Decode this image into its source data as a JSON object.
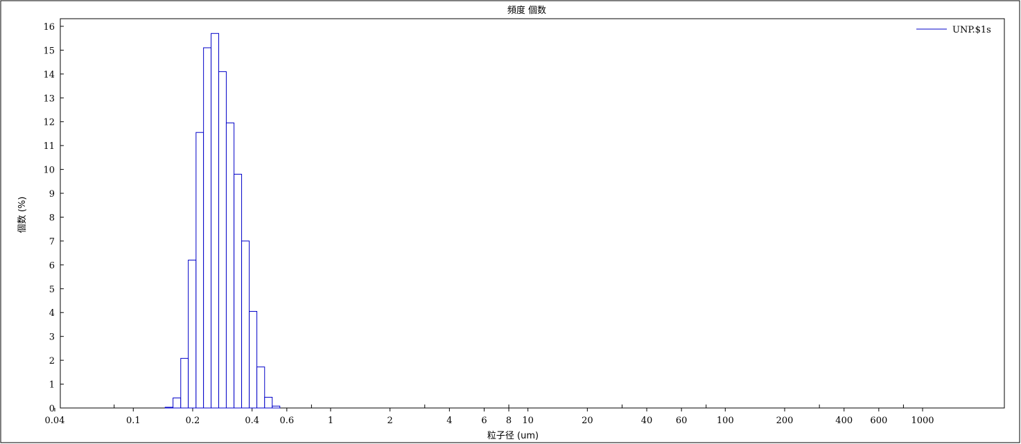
{
  "chart_data": {
    "type": "bar",
    "title": "頻度 個数",
    "xlabel": "粒子径 (um)",
    "ylabel": "個数 (%)",
    "x_scale": "log",
    "xlim": [
      0.04,
      3000
    ],
    "ylim": [
      0,
      16.5
    ],
    "x_tick_labels": [
      "0.04",
      "0.1",
      "0.2",
      "0.4",
      "0.6",
      "1",
      "2",
      "4",
      "6",
      "8",
      "10",
      "20",
      "40",
      "60",
      "100",
      "200",
      "400",
      "600",
      "1000"
    ],
    "x_tick_values": [
      0.04,
      0.1,
      0.2,
      0.4,
      0.6,
      1,
      2,
      4,
      6,
      8,
      10,
      20,
      40,
      60,
      100,
      200,
      400,
      600,
      1000
    ],
    "y_ticks": [
      0,
      1,
      2,
      3,
      4,
      5,
      6,
      7,
      8,
      9,
      10,
      11,
      12,
      13,
      14,
      15,
      16
    ],
    "legend_position": "top-right",
    "series": [
      {
        "name": "UNP.$1s",
        "color": "#0000c8",
        "bin_edges": [
          0.145,
          0.159,
          0.174,
          0.19,
          0.208,
          0.227,
          0.248,
          0.271,
          0.296,
          0.324,
          0.354,
          0.387,
          0.423,
          0.463,
          0.506,
          0.553,
          0.604
        ],
        "values": [
          0.03,
          0.42,
          2.08,
          6.2,
          11.55,
          15.1,
          15.7,
          14.1,
          11.95,
          9.8,
          7.0,
          4.05,
          1.72,
          0.45,
          0.08,
          0.0
        ]
      }
    ]
  }
}
